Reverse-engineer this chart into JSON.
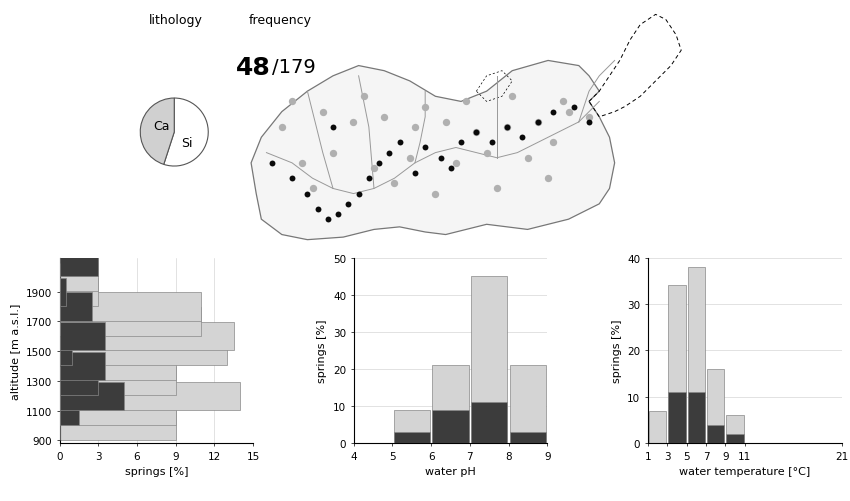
{
  "color_light": "#d4d4d4",
  "color_dark": "#3c3c3c",
  "color_edge": "#888888",
  "alt_bins": [
    900,
    1000,
    1100,
    1200,
    1300,
    1400,
    1500,
    1600,
    1700,
    1800,
    1900,
    2000
  ],
  "alt_light": [
    9.0,
    9.0,
    14.0,
    9.0,
    9.0,
    13.0,
    13.5,
    11.0,
    11.0,
    3.0,
    3.0,
    3.0
  ],
  "alt_dark": [
    0.0,
    1.5,
    5.0,
    3.0,
    3.5,
    1.0,
    3.5,
    0.0,
    2.5,
    0.5,
    0.0,
    3.0
  ],
  "alt_yticks": [
    900,
    1100,
    1300,
    1500,
    1700,
    1900
  ],
  "alt_xlabel": "springs [%]",
  "alt_ylabel": "altitude [m a.s.l.]",
  "ph_centers": [
    4.5,
    5.5,
    6.5,
    7.5,
    8.5
  ],
  "ph_light": [
    0,
    9,
    21,
    45,
    21
  ],
  "ph_dark": [
    0,
    3,
    9,
    11,
    3
  ],
  "ph_ylim": [
    0,
    50
  ],
  "ph_xlabel": "water pH",
  "ph_ylabel": "springs [%]",
  "ph_xticks": [
    4,
    5,
    6,
    7,
    8,
    9
  ],
  "temp_bin_edges": [
    1,
    3,
    5,
    7,
    9,
    11,
    21
  ],
  "temp_light": [
    7,
    34,
    38,
    16,
    6,
    0
  ],
  "temp_dark": [
    0,
    11,
    11,
    4,
    2,
    0
  ],
  "temp_ylim": [
    0,
    40
  ],
  "temp_xlabel": "water temperature [°C]",
  "temp_ylabel": "springs [%]",
  "temp_xticks": [
    1,
    3,
    5,
    7,
    9,
    11,
    21
  ],
  "pie_sizes": [
    55,
    45
  ],
  "pie_colors": [
    "#ffffff",
    "#d0d0d0"
  ],
  "pie_labels": [
    "Ca",
    "Si"
  ],
  "lithology_label": "lithology",
  "frequency_label": "frequency",
  "frequency_bold": "48",
  "frequency_rest": "/179"
}
